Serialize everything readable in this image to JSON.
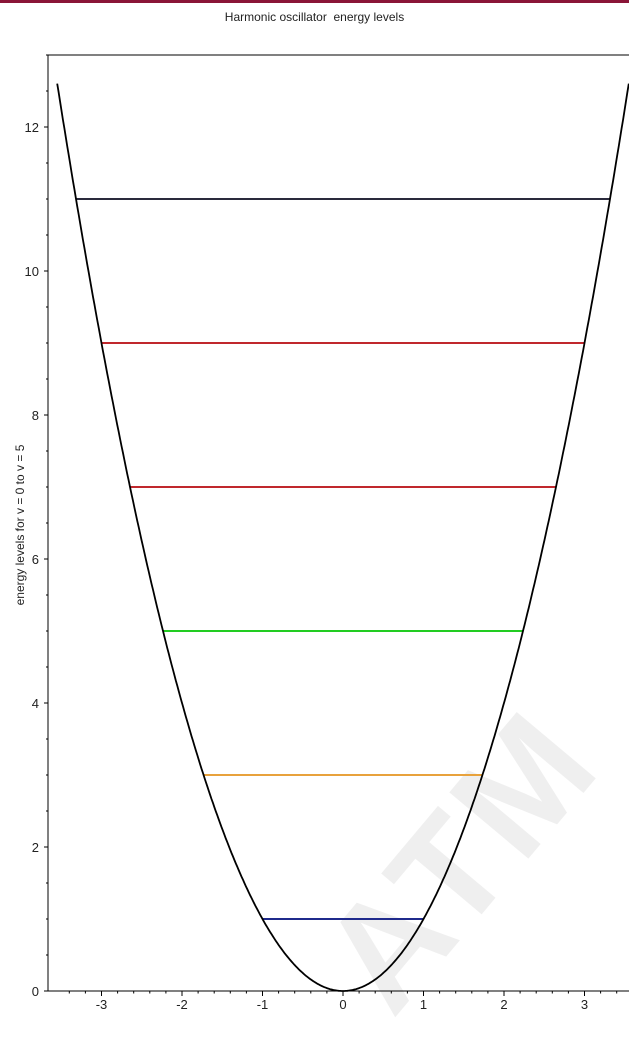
{
  "watermark": "ATM",
  "chart_data": {
    "type": "line",
    "title": "Harmonic oscillator  energy levels",
    "xlabel": "",
    "ylabel": "energy levels for v = 0 to v = 5",
    "xlim": [
      -3.55,
      3.55
    ],
    "ylim": [
      0,
      13
    ],
    "xticks": [
      -3,
      -2,
      -1,
      0,
      1,
      2,
      3
    ],
    "yticks": [
      0,
      2,
      4,
      6,
      8,
      10,
      12
    ],
    "grid": false,
    "potential": {
      "function": "x^2",
      "color": "#000000"
    },
    "levels": [
      {
        "v": 0,
        "energy": 1,
        "color": "#1f2a8c"
      },
      {
        "v": 1,
        "energy": 3,
        "color": "#e8a23c"
      },
      {
        "v": 2,
        "energy": 5,
        "color": "#22cc22"
      },
      {
        "v": 3,
        "energy": 7,
        "color": "#c0282d"
      },
      {
        "v": 4,
        "energy": 9,
        "color": "#c0282d"
      },
      {
        "v": 5,
        "energy": 11,
        "color": "#2a2a3c"
      }
    ]
  }
}
